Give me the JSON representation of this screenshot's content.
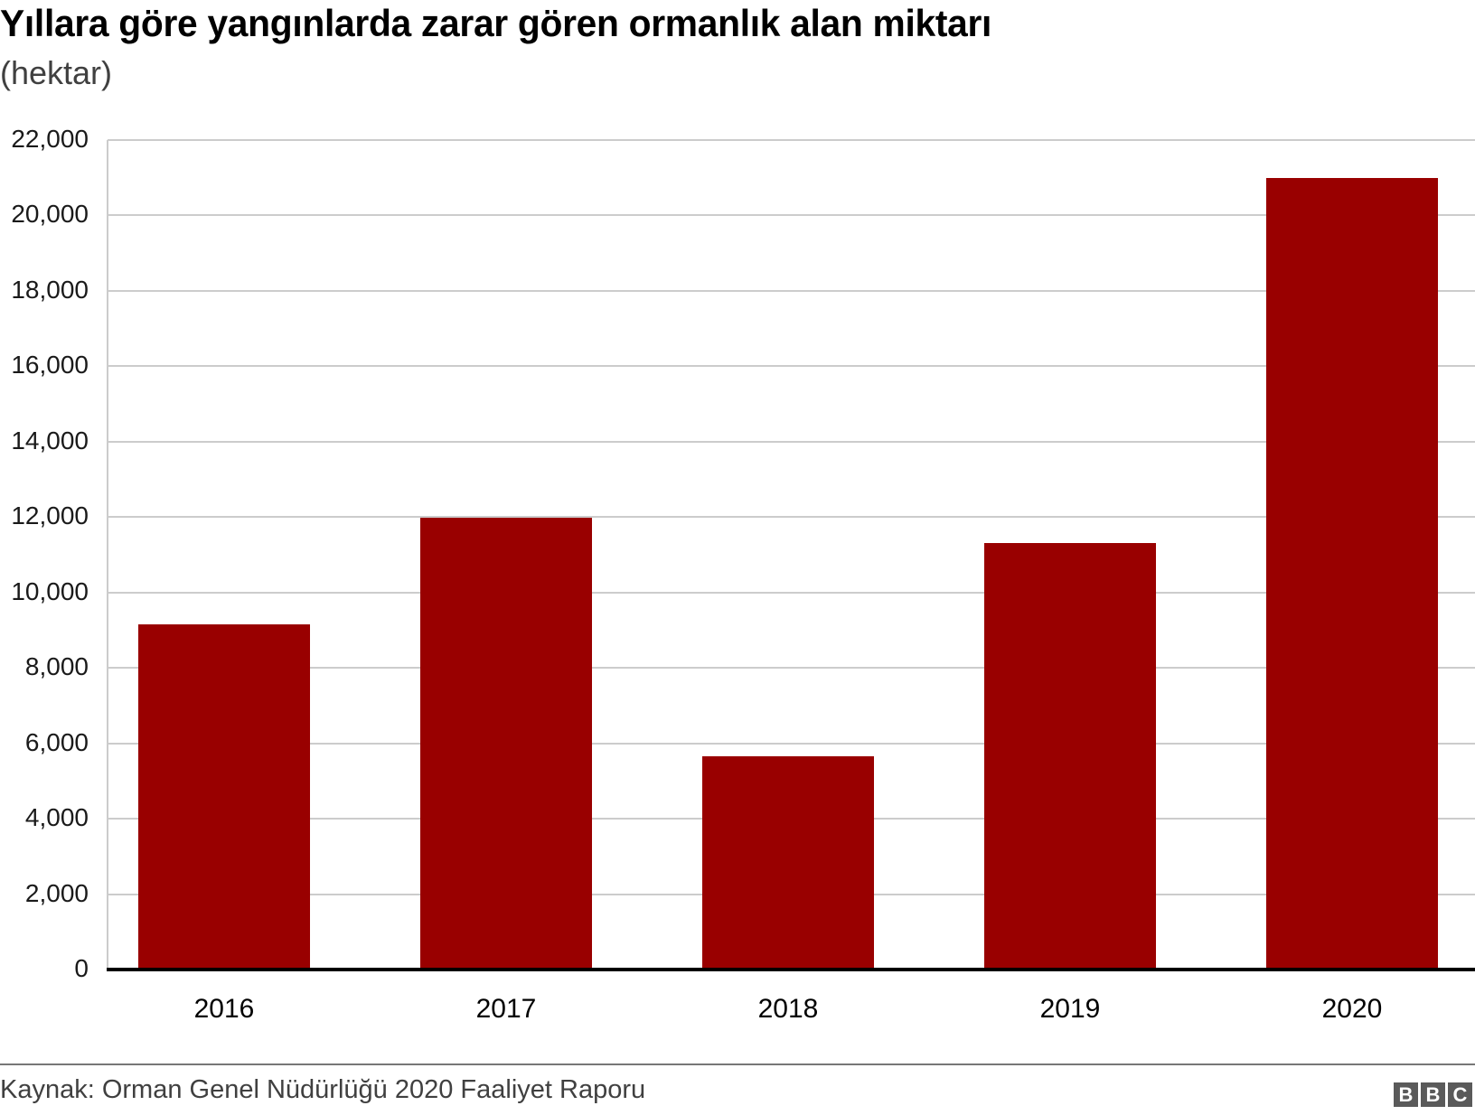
{
  "header": {
    "title": "Yıllara göre yangınlarda zarar gören ormanlık alan miktarı",
    "subtitle": "(hektar)"
  },
  "footer": {
    "source": "Kaynak: Orman Genel Nüdürlüğü 2020 Faaliyet Raporu",
    "logo": [
      "B",
      "B",
      "C"
    ]
  },
  "colors": {
    "bar": "#990000",
    "grid": "#cccccc",
    "baseline": "#000000",
    "footer_line": "#777777",
    "logo": "#5a5a5a"
  },
  "chart_data": {
    "type": "bar",
    "title": "Yıllara göre yangınlarda zarar gören ormanlık alan miktarı",
    "subtitle": "(hektar)",
    "xlabel": "",
    "ylabel": "hektar",
    "categories": [
      "2016",
      "2017",
      "2018",
      "2019",
      "2020"
    ],
    "values": [
      9156,
      11993,
      5650,
      11311,
      21000
    ],
    "ylim": [
      0,
      22000
    ],
    "yticks": [
      0,
      2000,
      4000,
      6000,
      8000,
      10000,
      12000,
      14000,
      16000,
      18000,
      20000,
      22000
    ],
    "ytick_labels": [
      "0",
      "2,000",
      "4,000",
      "6,000",
      "8,000",
      "10,000",
      "12,000",
      "14,000",
      "16,000",
      "18,000",
      "20,000",
      "22,000"
    ],
    "grid": true,
    "legend": null,
    "source": "Kaynak: Orman Genel Nüdürlüğü 2020 Faaliyet Raporu"
  }
}
